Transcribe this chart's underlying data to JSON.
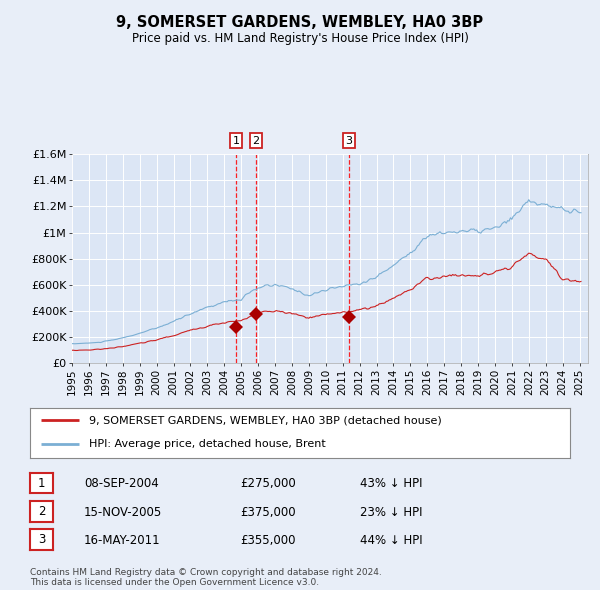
{
  "title": "9, SOMERSET GARDENS, WEMBLEY, HA0 3BP",
  "subtitle": "Price paid vs. HM Land Registry's House Price Index (HPI)",
  "background_color": "#e8eef8",
  "plot_bg_color": "#dce6f5",
  "transactions": [
    {
      "num": 1,
      "date": "08-SEP-2004",
      "year": 2004.69,
      "price": 275000,
      "pct": "43% ↓ HPI"
    },
    {
      "num": 2,
      "date": "15-NOV-2005",
      "year": 2005.88,
      "price": 375000,
      "pct": "23% ↓ HPI"
    },
    {
      "num": 3,
      "date": "16-MAY-2011",
      "year": 2011.37,
      "price": 355000,
      "pct": "44% ↓ HPI"
    }
  ],
  "legend_label_red": "9, SOMERSET GARDENS, WEMBLEY, HA0 3BP (detached house)",
  "legend_label_blue": "HPI: Average price, detached house, Brent",
  "footer": "Contains HM Land Registry data © Crown copyright and database right 2024.\nThis data is licensed under the Open Government Licence v3.0.",
  "ylim": [
    0,
    1600000
  ],
  "yticks": [
    0,
    200000,
    400000,
    600000,
    800000,
    1000000,
    1200000,
    1400000,
    1600000
  ],
  "ytick_labels": [
    "£0",
    "£200K",
    "£400K",
    "£600K",
    "£800K",
    "£1M",
    "£1.2M",
    "£1.4M",
    "£1.6M"
  ],
  "xlim": [
    1995,
    2025.5
  ],
  "xtick_years": [
    1995,
    1996,
    1997,
    1998,
    1999,
    2000,
    2001,
    2002,
    2003,
    2004,
    2005,
    2006,
    2007,
    2008,
    2009,
    2010,
    2011,
    2012,
    2013,
    2014,
    2015,
    2016,
    2017,
    2018,
    2019,
    2020,
    2021,
    2022,
    2023,
    2024,
    2025
  ]
}
